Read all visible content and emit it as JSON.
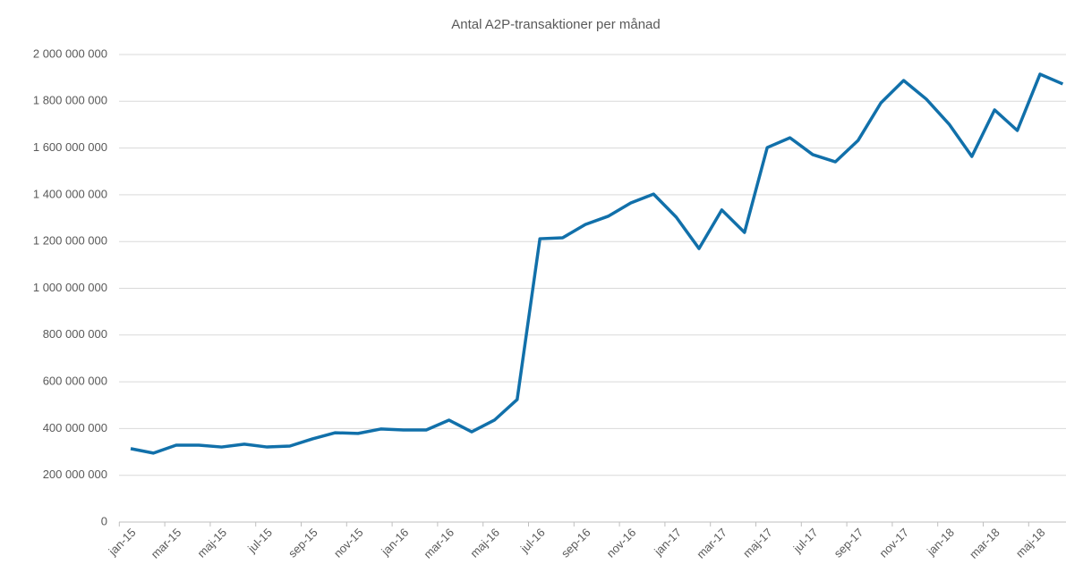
{
  "chart_data": {
    "type": "line",
    "title": "Antal A2P-transaktioner per månad",
    "categories": [
      "jan-15",
      null,
      "mar-15",
      null,
      "maj-15",
      null,
      "jul-15",
      null,
      "sep-15",
      null,
      "nov-15",
      null,
      "jan-16",
      null,
      "mar-16",
      null,
      "maj-16",
      null,
      "jul-16",
      null,
      "sep-16",
      null,
      "nov-16",
      null,
      "jan-17",
      null,
      "mar-17",
      null,
      "maj-17",
      null,
      "jul-17",
      null,
      "sep-17",
      null,
      "nov-17",
      null,
      "jan-18",
      null,
      "mar-18",
      null,
      "maj-18",
      null
    ],
    "series": [
      {
        "name": "Antal A2P-transaktioner",
        "color": "#1170aa",
        "values": [
          314000000,
          295000000,
          329000000,
          329000000,
          321000000,
          333000000,
          321000000,
          325000000,
          356000000,
          382000000,
          379000000,
          398000000,
          394000000,
          394000000,
          436000000,
          386000000,
          436000000,
          524000000,
          1212000000,
          1216000000,
          1273000000,
          1308000000,
          1365000000,
          1403000000,
          1304000000,
          1170000000,
          1335000000,
          1239000000,
          1602000000,
          1644000000,
          1572000000,
          1541000000,
          1633000000,
          1793000000,
          1889000000,
          1809000000,
          1702000000,
          1564000000,
          1763000000,
          1675000000,
          1916000000,
          1874000000
        ]
      }
    ],
    "ylim": [
      0,
      2000000000
    ],
    "yticks": [
      0,
      {
        "value": 200000000,
        "label": "200 000 000"
      },
      {
        "value": 400000000,
        "label": "400 000 000"
      },
      {
        "value": 600000000,
        "label": "600 000 000"
      },
      {
        "value": 800000000,
        "label": "800 000 000"
      },
      {
        "value": 1000000000,
        "label": "1 000 000 000"
      },
      {
        "value": 1200000000,
        "label": "1 200 000 000"
      },
      {
        "value": 1400000000,
        "label": "1 400 000 000"
      },
      {
        "value": 1600000000,
        "label": "1 600 000 000"
      },
      {
        "value": 1800000000,
        "label": "1 800 000 000"
      },
      {
        "value": 2000000000,
        "label": "2 000 000 000"
      }
    ],
    "grid": true
  }
}
